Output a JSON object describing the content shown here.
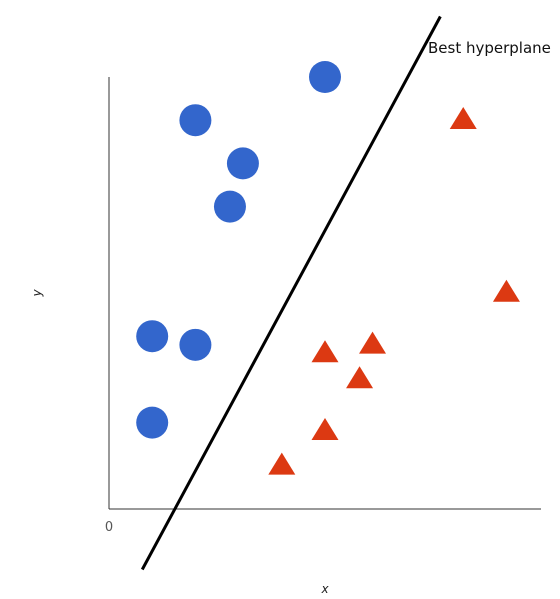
{
  "chart_data": {
    "type": "scatter",
    "title": "",
    "xlabel": "x",
    "ylabel": "y",
    "xlim": [
      0,
      10
    ],
    "ylim": [
      0,
      10
    ],
    "grid": false,
    "origin_tick": "0",
    "series": [
      {
        "marker": "circle",
        "color": "#3366cc",
        "points": [
          [
            5,
            10
          ],
          [
            2,
            9
          ],
          [
            3.1,
            8
          ],
          [
            2.8,
            7
          ],
          [
            1,
            4
          ],
          [
            2,
            3.8
          ],
          [
            1,
            2
          ]
        ]
      },
      {
        "marker": "triangle",
        "color": "#dc3912",
        "points": [
          [
            8.2,
            9
          ],
          [
            9.2,
            5
          ],
          [
            6.1,
            3.8
          ],
          [
            5,
            3.6
          ],
          [
            5.8,
            3
          ],
          [
            5,
            1.8
          ],
          [
            4,
            1
          ]
        ]
      }
    ],
    "hyperplane": {
      "label": "Best hyperplane",
      "from": [
        0.77,
        -1.4
      ],
      "to": [
        7.67,
        11.4
      ],
      "color": "#000000"
    }
  }
}
